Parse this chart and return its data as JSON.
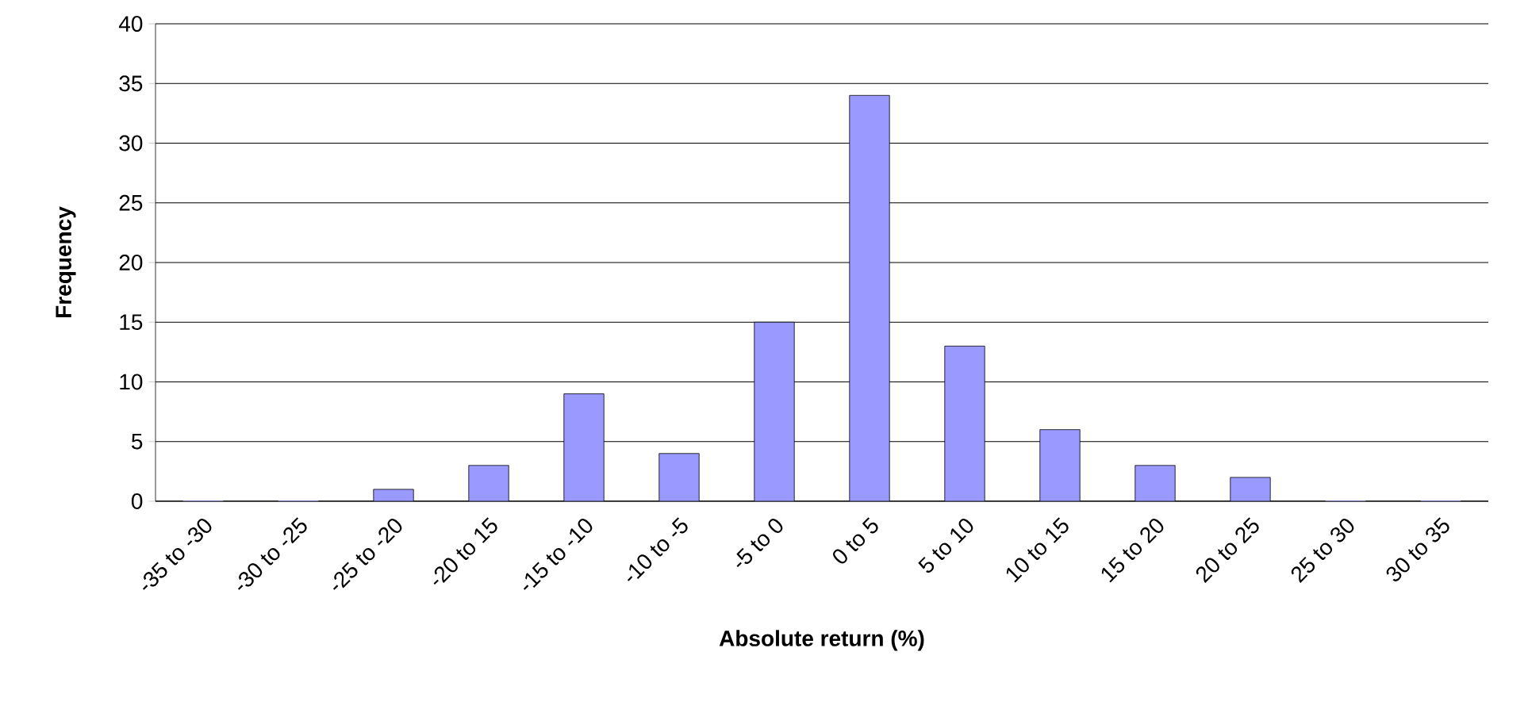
{
  "chart_data": {
    "type": "bar",
    "xlabel": "Absolute return (%)",
    "ylabel": "Frequency",
    "categories": [
      "-35 to -30",
      "-30 to -25",
      "-25 to -20",
      "-20 to 15",
      "-15 to -10",
      "-10 to -5",
      "-5 to 0",
      "0 to 5",
      "5 to 10",
      "10 to 15",
      "15 to 20",
      "20 to 25",
      "25 to 30",
      "30 to 35"
    ],
    "values": [
      0,
      0,
      1,
      3,
      9,
      4,
      15,
      34,
      13,
      6,
      3,
      2,
      0,
      0
    ],
    "color": "#9999ff",
    "ylim": [
      0,
      40
    ],
    "yticks": [
      0,
      5,
      10,
      15,
      20,
      25,
      30,
      35,
      40
    ],
    "grid": "y"
  }
}
